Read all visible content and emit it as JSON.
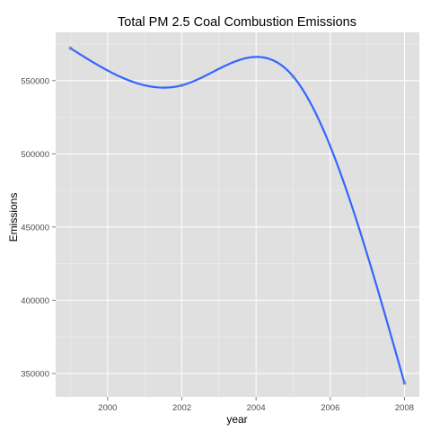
{
  "chart_data": {
    "type": "line",
    "title": "Total PM 2.5 Coal Combustion Emissions",
    "xlabel": "year",
    "ylabel": "Emissions",
    "x": [
      1999,
      2002,
      2005,
      2008
    ],
    "series": [
      {
        "values": [
          572100,
          546800,
          552900,
          343400
        ]
      }
    ],
    "xlim": [
      1998.6,
      2008.4
    ],
    "ylim": [
      334000,
      583000
    ],
    "xticks": [
      2000,
      2002,
      2004,
      2006,
      2008
    ],
    "yticks": [
      350000,
      400000,
      450000,
      500000,
      550000
    ],
    "grid": true,
    "legend": "none",
    "colors": {
      "panel_background": "#E0E0E0",
      "grid": "#FFFFFF",
      "line": "#3366FF",
      "points": "#7F7FB2"
    }
  }
}
